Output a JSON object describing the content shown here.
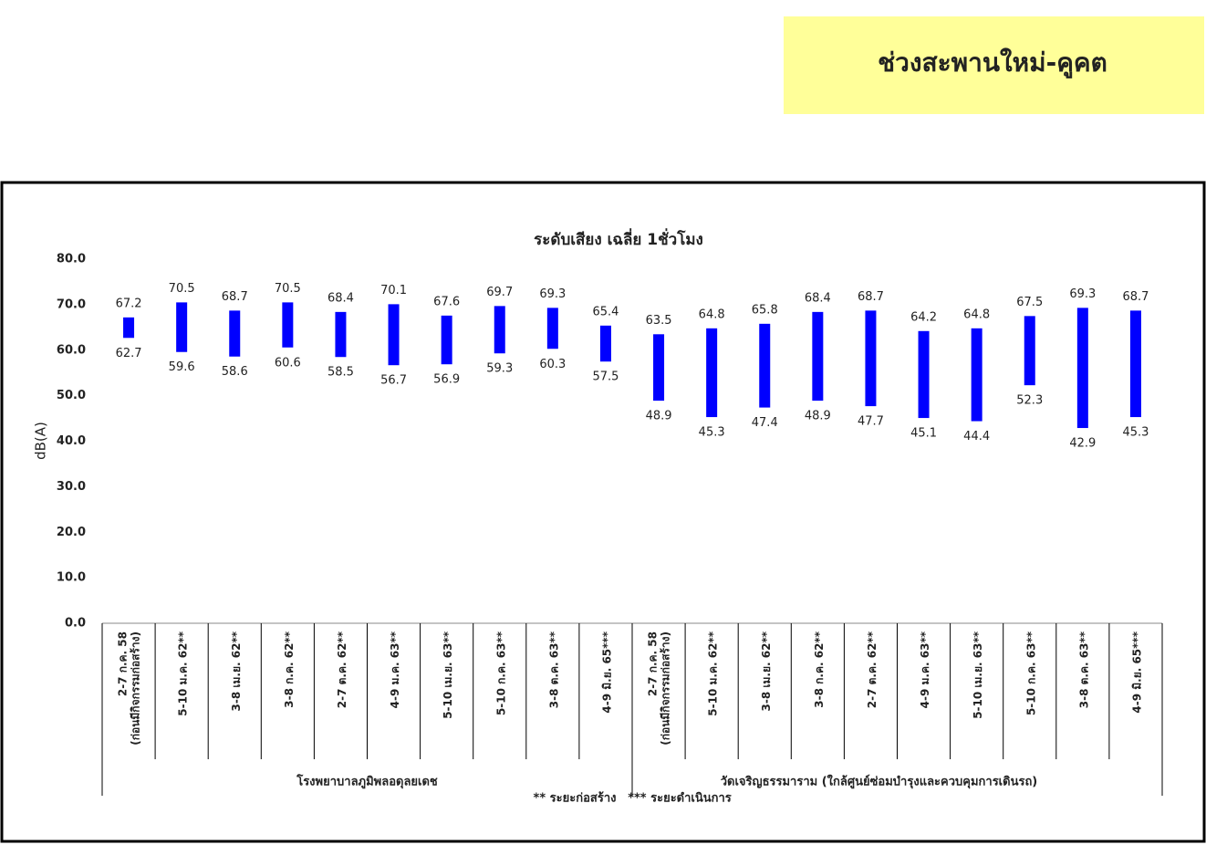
{
  "header": "ช่วงสะพานใหม่-คูคต",
  "chart_data": {
    "type": "range",
    "title": "ระดับเสียง เฉลี่ย 1ชั่วโมง",
    "y_label": "dB(A)",
    "color": "#0000ff",
    "ylim": [
      0,
      80
    ],
    "yticks": [
      {
        "value": 0,
        "label": "0.0"
      },
      {
        "value": 10,
        "label": "10.0"
      },
      {
        "value": 20,
        "label": "20.0"
      },
      {
        "value": 30,
        "label": "30.0"
      },
      {
        "value": 40,
        "label": "40.0"
      },
      {
        "value": 50,
        "label": "50.0"
      },
      {
        "value": 60,
        "label": "60.0"
      },
      {
        "value": 70,
        "label": "70.0"
      },
      {
        "value": 80,
        "label": "80.0"
      }
    ],
    "groups": [
      {
        "name": "โรงพยาบาลภูมิพลอดุลยเดช",
        "categories": [
          [
            "2-7 ก.ค. 58",
            "(ก่อนมีกิจกรรมก่อสร้าง)"
          ],
          "5-10 ม.ค. 62**",
          "3-8 เม.ย. 62**",
          "3-8 ก.ค. 62**",
          "2-7 ต.ค. 62**",
          "4-9 ม.ค. 63**",
          "5-10 เม.ย. 63**",
          "5-10 ก.ค. 63**",
          "3-8 ต.ค. 63**",
          "4-9 มิ.ย. 65***"
        ]
      },
      {
        "name": "วัดเจริญธรรมาราม (ใกล้ศูนย์ซ่อมบำรุงและควบคุมการเดินรถ)",
        "categories": [
          [
            "2-7 ก.ค. 58",
            "(ก่อนมีกิจกรรมก่อสร้าง)"
          ],
          "5-10 ม.ค. 62**",
          "3-8 เม.ย. 62**",
          "3-8 ก.ค. 62**",
          "2-7 ต.ค. 62**",
          "4-9 ม.ค. 63**",
          "5-10 เม.ย. 63**",
          "5-10 ก.ค. 63**",
          "3-8 ต.ค. 63**",
          "4-9 มิ.ย. 65***"
        ]
      }
    ],
    "high": [
      67.2,
      70.5,
      68.7,
      70.5,
      68.4,
      70.1,
      67.6,
      69.7,
      69.3,
      65.4,
      63.5,
      64.8,
      65.8,
      68.4,
      68.7,
      64.2,
      64.8,
      67.5,
      69.3,
      68.7
    ],
    "low": [
      62.7,
      59.6,
      58.6,
      60.6,
      58.5,
      56.7,
      56.9,
      59.3,
      60.3,
      57.5,
      48.9,
      45.3,
      47.4,
      48.9,
      47.7,
      45.1,
      44.4,
      52.3,
      42.9,
      45.3
    ],
    "notes": [
      "** ระยะก่อสร้าง",
      "*** ระยะดำเนินการ"
    ]
  }
}
